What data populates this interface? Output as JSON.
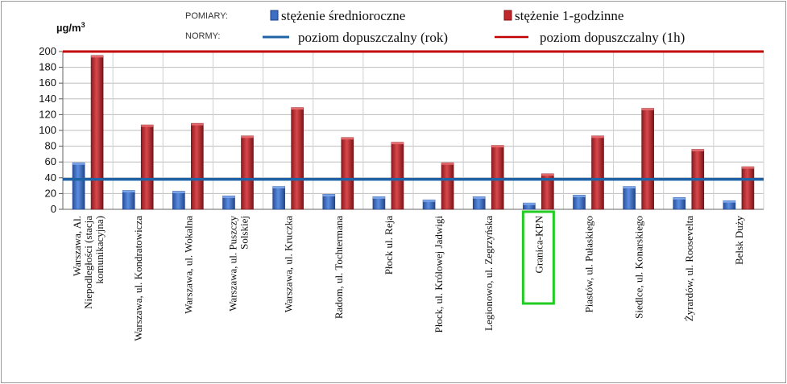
{
  "chart_data": {
    "type": "bar",
    "ylabel": "µg/m",
    "ylabel_sup": "3",
    "ylim": [
      0,
      200
    ],
    "yticks": [
      0,
      20,
      40,
      60,
      80,
      100,
      120,
      140,
      160,
      180,
      200
    ],
    "grid": true,
    "legend_position": "top",
    "legend_groups": [
      "POMIARY:",
      "NORMY:"
    ],
    "categories": [
      [
        "Warszawa, Al.",
        "Niepodległości (stacja",
        "komunikacyjna)"
      ],
      [
        "Warszawa, ul. Kondratowicza"
      ],
      [
        "Warszawa, ul. Wokalna"
      ],
      [
        "Warszawa, ul. Puszczy",
        "Solskiej"
      ],
      [
        "Warszawa, ul. Kruczka"
      ],
      [
        "Radom, ul. Tochtermana"
      ],
      [
        "Płock ul. Reja"
      ],
      [
        "Płock, ul. Królowej Jadwigi"
      ],
      [
        "Legionowo, ul. Zegrzyńska"
      ],
      [
        "Granica-KPN"
      ],
      [
        "Piastów, ul. Pułaskiego"
      ],
      [
        "Siedlce, ul. Konarskiego"
      ],
      [
        "Żyrardów, ul. Roosevelta"
      ],
      [
        "Belsk Duży"
      ]
    ],
    "highlight_category_index": 9,
    "highlight_color": "#22cc22",
    "series": [
      {
        "name": "stężenie średnioroczne",
        "color": "#3d6fc4",
        "values": [
          59,
          24,
          23,
          17,
          29,
          19,
          16,
          12,
          16,
          8,
          18,
          29,
          15,
          11
        ]
      },
      {
        "name": "stężenie 1-godzinne",
        "color": "#c0282d",
        "values": [
          195,
          107,
          109,
          93,
          129,
          91,
          85,
          59,
          81,
          45,
          93,
          128,
          76,
          54
        ]
      }
    ],
    "reference_lines": [
      {
        "name": "poziom dopuszczalny (rok)",
        "value": 38,
        "color": "#1f63a6"
      },
      {
        "name": "poziom dopuszczalny (1h)",
        "value": 200,
        "color": "#c00000"
      }
    ]
  }
}
